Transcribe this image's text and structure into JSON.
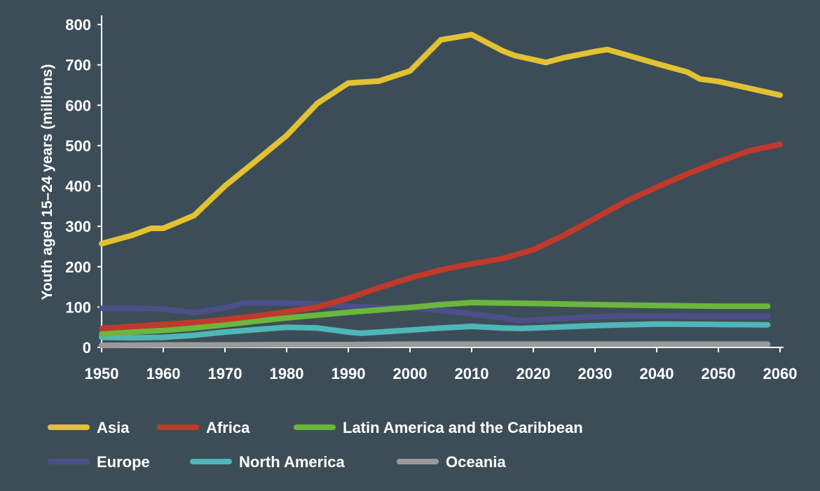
{
  "chart_data": {
    "type": "line",
    "title": "",
    "xlabel": "",
    "ylabel": "Youth aged 15–24 years (millions)",
    "xlim": [
      1950,
      2060
    ],
    "ylim": [
      0,
      800
    ],
    "x_ticks": [
      1950,
      1960,
      1970,
      1980,
      1990,
      2000,
      2010,
      2020,
      2030,
      2040,
      2050,
      2060
    ],
    "y_ticks": [
      0,
      100,
      200,
      300,
      400,
      500,
      600,
      700,
      800
    ],
    "grid": false,
    "legend_position": "bottom",
    "series": [
      {
        "name": "Asia",
        "color": "#e2c233",
        "points": [
          [
            1950,
            257
          ],
          [
            1955,
            278
          ],
          [
            1958,
            295
          ],
          [
            1960,
            295
          ],
          [
            1965,
            327
          ],
          [
            1970,
            400
          ],
          [
            1975,
            462
          ],
          [
            1980,
            525
          ],
          [
            1985,
            605
          ],
          [
            1990,
            655
          ],
          [
            1995,
            660
          ],
          [
            2000,
            685
          ],
          [
            2005,
            762
          ],
          [
            2010,
            775
          ],
          [
            2015,
            735
          ],
          [
            2017,
            723
          ],
          [
            2020,
            713
          ],
          [
            2022,
            706
          ],
          [
            2025,
            718
          ],
          [
            2030,
            733
          ],
          [
            2032,
            738
          ],
          [
            2035,
            725
          ],
          [
            2040,
            703
          ],
          [
            2045,
            682
          ],
          [
            2047,
            665
          ],
          [
            2050,
            659
          ],
          [
            2055,
            642
          ],
          [
            2060,
            625
          ]
        ]
      },
      {
        "name": "Africa",
        "color": "#c1392b",
        "points": [
          [
            1950,
            47
          ],
          [
            1955,
            52
          ],
          [
            1960,
            57
          ],
          [
            1965,
            62
          ],
          [
            1970,
            69
          ],
          [
            1975,
            78
          ],
          [
            1980,
            88
          ],
          [
            1985,
            100
          ],
          [
            1990,
            122
          ],
          [
            1995,
            148
          ],
          [
            2000,
            172
          ],
          [
            2005,
            192
          ],
          [
            2010,
            207
          ],
          [
            2015,
            220
          ],
          [
            2020,
            242
          ],
          [
            2025,
            278
          ],
          [
            2030,
            320
          ],
          [
            2035,
            362
          ],
          [
            2040,
            397
          ],
          [
            2045,
            430
          ],
          [
            2050,
            460
          ],
          [
            2055,
            487
          ],
          [
            2060,
            503
          ]
        ]
      },
      {
        "name": "Latin America and the Caribbean",
        "color": "#6bb73d",
        "points": [
          [
            1950,
            33
          ],
          [
            1955,
            38
          ],
          [
            1960,
            42
          ],
          [
            1965,
            48
          ],
          [
            1970,
            56
          ],
          [
            1975,
            65
          ],
          [
            1980,
            73
          ],
          [
            1985,
            80
          ],
          [
            1990,
            87
          ],
          [
            1995,
            93
          ],
          [
            2000,
            99
          ],
          [
            2005,
            106
          ],
          [
            2010,
            111
          ],
          [
            2015,
            110
          ],
          [
            2020,
            109
          ],
          [
            2030,
            106
          ],
          [
            2040,
            104
          ],
          [
            2050,
            102
          ],
          [
            2058,
            102
          ]
        ]
      },
      {
        "name": "Europe",
        "color": "#4c4f88",
        "points": [
          [
            1950,
            97
          ],
          [
            1955,
            97
          ],
          [
            1960,
            95
          ],
          [
            1965,
            86
          ],
          [
            1970,
            98
          ],
          [
            1973,
            110
          ],
          [
            1980,
            110
          ],
          [
            1985,
            108
          ],
          [
            1990,
            102
          ],
          [
            1995,
            99
          ],
          [
            2000,
            98
          ],
          [
            2005,
            92
          ],
          [
            2010,
            83
          ],
          [
            2015,
            73
          ],
          [
            2018,
            66
          ],
          [
            2020,
            68
          ],
          [
            2025,
            72
          ],
          [
            2030,
            76
          ],
          [
            2035,
            78
          ],
          [
            2040,
            78
          ],
          [
            2050,
            77
          ],
          [
            2058,
            77
          ]
        ]
      },
      {
        "name": "North America",
        "color": "#4fb7b7",
        "points": [
          [
            1950,
            25
          ],
          [
            1955,
            24
          ],
          [
            1960,
            25
          ],
          [
            1965,
            30
          ],
          [
            1970,
            38
          ],
          [
            1975,
            44
          ],
          [
            1980,
            50
          ],
          [
            1985,
            48
          ],
          [
            1990,
            38
          ],
          [
            1992,
            35
          ],
          [
            1995,
            38
          ],
          [
            2000,
            43
          ],
          [
            2005,
            48
          ],
          [
            2010,
            52
          ],
          [
            2015,
            48
          ],
          [
            2018,
            47
          ],
          [
            2020,
            48
          ],
          [
            2025,
            51
          ],
          [
            2030,
            54
          ],
          [
            2035,
            56
          ],
          [
            2040,
            58
          ],
          [
            2050,
            57
          ],
          [
            2058,
            56
          ]
        ]
      },
      {
        "name": "Oceania",
        "color": "#9a9a9a",
        "points": [
          [
            1950,
            5
          ],
          [
            1960,
            6
          ],
          [
            1970,
            6
          ],
          [
            1980,
            7
          ],
          [
            1990,
            7
          ],
          [
            2000,
            8
          ],
          [
            2010,
            8
          ],
          [
            2020,
            8
          ],
          [
            2030,
            8
          ],
          [
            2040,
            8
          ],
          [
            2050,
            8
          ],
          [
            2058,
            8
          ]
        ]
      }
    ]
  }
}
